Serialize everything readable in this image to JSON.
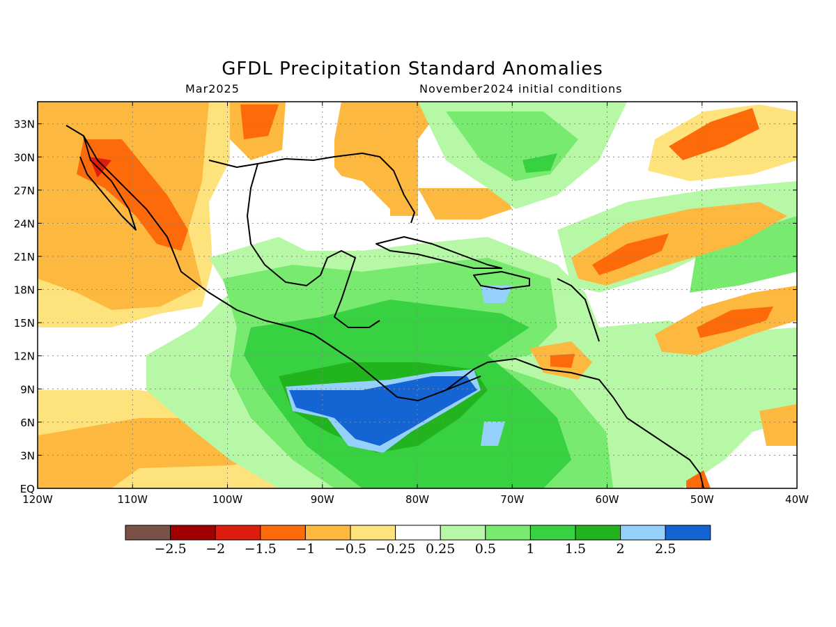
{
  "title": "GFDL Precipitation Standard Anomalies",
  "valid_month": "Mar2025",
  "init_label": "November2024 initial conditions",
  "map": {
    "lon_range": [
      -120,
      -40
    ],
    "lat_range": [
      0,
      35
    ],
    "lat_ticks": [
      "33N",
      "30N",
      "27N",
      "24N",
      "21N",
      "18N",
      "15N",
      "12N",
      "9N",
      "6N",
      "3N",
      "EQ"
    ],
    "lon_ticks": [
      "120W",
      "110W",
      "100W",
      "90W",
      "80W",
      "70W",
      "60W",
      "50W",
      "40W"
    ]
  },
  "colorbar": {
    "colors": [
      "#7a5147",
      "#a00000",
      "#dd1d0d",
      "#fd6a0a",
      "#fdb840",
      "#fee37c",
      "#ffffff",
      "#b6f8a6",
      "#77ea6f",
      "#37d142",
      "#21b41f",
      "#96d1fb",
      "#1464d4"
    ],
    "labels": [
      "−2.5",
      "−2",
      "−1.5",
      "−1",
      "−0.5",
      "−0.25",
      "0.25",
      "0.5",
      "1",
      "1.5",
      "2",
      "2.5"
    ]
  }
}
